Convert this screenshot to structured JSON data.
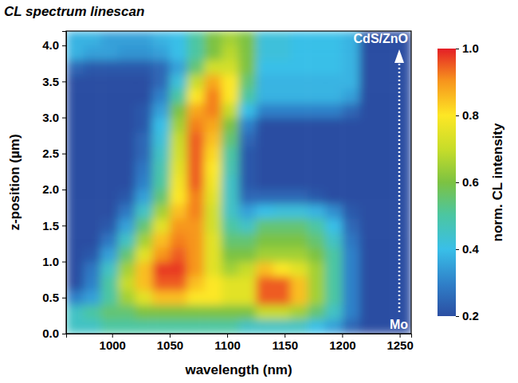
{
  "chart_data": {
    "type": "heatmap",
    "title": "CL spectrum linescan",
    "x_label": "wavelength (nm)",
    "y_label": "z-position (µm)",
    "annotations": [
      "CdS/ZnO",
      "Mo"
    ],
    "xlim": [
      960,
      1260
    ],
    "ylim": [
      0,
      4.2
    ],
    "xticks": [
      1000,
      1050,
      1100,
      1150,
      1200,
      1250
    ],
    "yticks": [
      {
        "value": 0,
        "label": "0.0"
      },
      0.5,
      {
        "value": 1,
        "label": "1.0"
      },
      1.5,
      {
        "value": 2,
        "label": "2.0"
      },
      2.5,
      {
        "value": 3,
        "label": "3.0"
      },
      3.5,
      {
        "value": 4,
        "label": "4.0"
      }
    ],
    "x": [
      967.5,
      982.5,
      997.5,
      1012.5,
      1027.5,
      1042.5,
      1057.5,
      1072.5,
      1087.5,
      1102.5,
      1117.5,
      1132.5,
      1147.5,
      1162.5,
      1177.5,
      1192.5,
      1207.5,
      1222.5,
      1237.5,
      1252.5
    ],
    "y": [
      0.1,
      0.3,
      0.5,
      0.7,
      0.9,
      1.1,
      1.3,
      1.5,
      1.7,
      1.9,
      2.1,
      2.3,
      2.5,
      2.7,
      2.9,
      3.1,
      3.3,
      3.5,
      3.7,
      3.9,
      4.1
    ],
    "values": [
      [
        0.45,
        0.45,
        0.5,
        0.5,
        0.5,
        0.5,
        0.5,
        0.5,
        0.5,
        0.5,
        0.45,
        0.45,
        0.45,
        0.45,
        0.4,
        0.35,
        0.25,
        0.2,
        0.2,
        0.2
      ],
      [
        0.45,
        0.5,
        0.55,
        0.55,
        0.6,
        0.6,
        0.6,
        0.6,
        0.6,
        0.6,
        0.6,
        0.7,
        0.7,
        0.65,
        0.55,
        0.45,
        0.3,
        0.2,
        0.2,
        0.2
      ],
      [
        0.3,
        0.35,
        0.5,
        0.65,
        0.75,
        0.85,
        0.85,
        0.8,
        0.8,
        0.75,
        0.75,
        0.95,
        0.95,
        0.85,
        0.65,
        0.5,
        0.3,
        0.2,
        0.2,
        0.2
      ],
      [
        0.2,
        0.3,
        0.5,
        0.7,
        0.85,
        0.95,
        0.95,
        0.85,
        0.8,
        0.75,
        0.75,
        0.95,
        0.95,
        0.85,
        0.65,
        0.5,
        0.3,
        0.2,
        0.2,
        0.2
      ],
      [
        0.2,
        0.28,
        0.45,
        0.65,
        0.85,
        0.98,
        0.98,
        0.9,
        0.75,
        0.65,
        0.7,
        0.85,
        0.8,
        0.75,
        0.65,
        0.5,
        0.3,
        0.2,
        0.2,
        0.2
      ],
      [
        0.2,
        0.22,
        0.35,
        0.55,
        0.75,
        0.9,
        0.95,
        0.9,
        0.75,
        0.6,
        0.6,
        0.65,
        0.65,
        0.65,
        0.6,
        0.5,
        0.3,
        0.2,
        0.2,
        0.2
      ],
      [
        0.2,
        0.2,
        0.28,
        0.45,
        0.65,
        0.85,
        0.92,
        0.9,
        0.75,
        0.55,
        0.55,
        0.6,
        0.6,
        0.6,
        0.55,
        0.45,
        0.28,
        0.2,
        0.2,
        0.2
      ],
      [
        0.2,
        0.2,
        0.22,
        0.35,
        0.55,
        0.75,
        0.9,
        0.9,
        0.72,
        0.5,
        0.45,
        0.55,
        0.55,
        0.55,
        0.5,
        0.4,
        0.25,
        0.2,
        0.2,
        0.2
      ],
      [
        0.2,
        0.2,
        0.2,
        0.28,
        0.45,
        0.65,
        0.85,
        0.92,
        0.72,
        0.45,
        0.35,
        0.4,
        0.42,
        0.42,
        0.38,
        0.32,
        0.22,
        0.2,
        0.2,
        0.2
      ],
      [
        0.2,
        0.2,
        0.2,
        0.22,
        0.35,
        0.55,
        0.8,
        0.92,
        0.75,
        0.45,
        0.25,
        0.25,
        0.25,
        0.25,
        0.22,
        0.2,
        0.2,
        0.2,
        0.2,
        0.2
      ],
      [
        0.2,
        0.2,
        0.2,
        0.2,
        0.3,
        0.5,
        0.78,
        0.95,
        0.78,
        0.45,
        0.22,
        0.2,
        0.2,
        0.2,
        0.2,
        0.2,
        0.2,
        0.2,
        0.2,
        0.2
      ],
      [
        0.2,
        0.2,
        0.2,
        0.2,
        0.28,
        0.48,
        0.75,
        0.95,
        0.8,
        0.48,
        0.22,
        0.2,
        0.2,
        0.2,
        0.2,
        0.2,
        0.2,
        0.2,
        0.2,
        0.2
      ],
      [
        0.2,
        0.2,
        0.2,
        0.2,
        0.25,
        0.45,
        0.72,
        0.95,
        0.82,
        0.5,
        0.22,
        0.2,
        0.2,
        0.2,
        0.2,
        0.2,
        0.2,
        0.2,
        0.2,
        0.2
      ],
      [
        0.2,
        0.2,
        0.2,
        0.2,
        0.25,
        0.42,
        0.7,
        0.95,
        0.85,
        0.55,
        0.25,
        0.2,
        0.2,
        0.2,
        0.2,
        0.2,
        0.2,
        0.2,
        0.2,
        0.2
      ],
      [
        0.2,
        0.2,
        0.2,
        0.2,
        0.22,
        0.4,
        0.65,
        0.92,
        0.88,
        0.6,
        0.3,
        0.2,
        0.2,
        0.2,
        0.2,
        0.2,
        0.2,
        0.2,
        0.2,
        0.2
      ],
      [
        0.2,
        0.2,
        0.2,
        0.2,
        0.22,
        0.35,
        0.6,
        0.88,
        0.92,
        0.7,
        0.4,
        0.3,
        0.3,
        0.3,
        0.3,
        0.3,
        0.25,
        0.2,
        0.2,
        0.2
      ],
      [
        0.2,
        0.2,
        0.2,
        0.2,
        0.2,
        0.3,
        0.5,
        0.8,
        0.92,
        0.8,
        0.5,
        0.38,
        0.38,
        0.38,
        0.38,
        0.38,
        0.35,
        0.2,
        0.2,
        0.2
      ],
      [
        0.2,
        0.2,
        0.2,
        0.2,
        0.2,
        0.25,
        0.42,
        0.7,
        0.88,
        0.8,
        0.55,
        0.38,
        0.38,
        0.38,
        0.38,
        0.38,
        0.38,
        0.2,
        0.2,
        0.2
      ],
      [
        0.25,
        0.22,
        0.22,
        0.22,
        0.22,
        0.25,
        0.35,
        0.55,
        0.72,
        0.72,
        0.6,
        0.4,
        0.4,
        0.4,
        0.4,
        0.4,
        0.38,
        0.2,
        0.2,
        0.2
      ],
      [
        0.38,
        0.35,
        0.35,
        0.33,
        0.33,
        0.35,
        0.4,
        0.5,
        0.6,
        0.68,
        0.6,
        0.42,
        0.42,
        0.4,
        0.4,
        0.4,
        0.38,
        0.2,
        0.2,
        0.2
      ],
      [
        0.38,
        0.38,
        0.35,
        0.35,
        0.35,
        0.38,
        0.4,
        0.5,
        0.6,
        0.65,
        0.6,
        0.42,
        0.42,
        0.4,
        0.4,
        0.4,
        0.38,
        0.2,
        0.2,
        0.2
      ]
    ],
    "colorbar": {
      "label": "norm. CL intensity",
      "range": [
        0.2,
        1
      ],
      "ticks": [
        0.2,
        0.4,
        0.6,
        0.8,
        {
          "value": 1,
          "label": "1.0"
        }
      ]
    }
  }
}
